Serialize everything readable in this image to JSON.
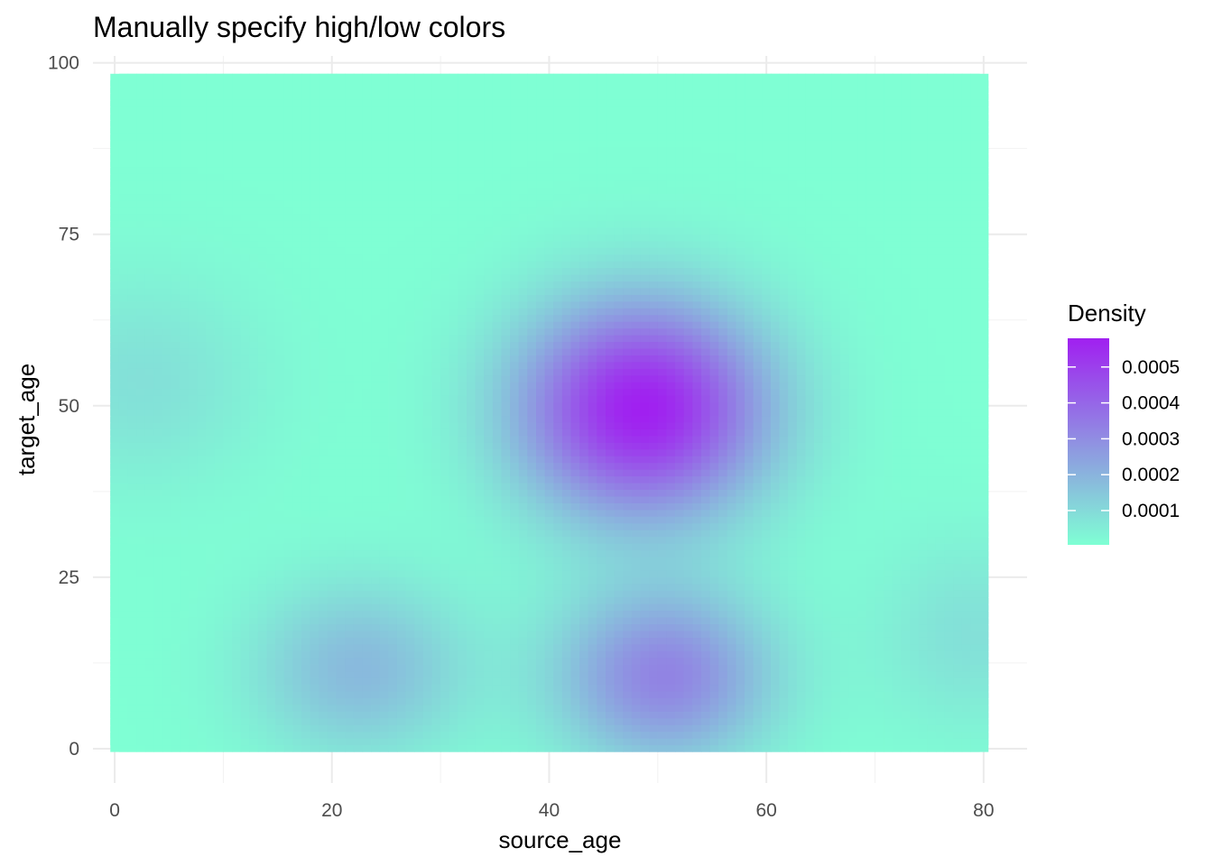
{
  "chart_data": {
    "type": "heatmap",
    "title": "Manually specify high/low colors",
    "xlabel": "source_age",
    "ylabel": "target_age",
    "xlim": [
      -2,
      84
    ],
    "ylim": [
      -5,
      101
    ],
    "x_ticks": [
      0,
      20,
      40,
      60,
      80
    ],
    "x_tick_labels": [
      "0",
      "20",
      "40",
      "60",
      "80"
    ],
    "y_ticks": [
      0,
      25,
      50,
      75,
      100
    ],
    "y_tick_labels": [
      "0",
      "25",
      "50",
      "75",
      "100"
    ],
    "fill_extent": {
      "x": [
        0,
        80
      ],
      "y": [
        0,
        98
      ]
    },
    "grid": true,
    "color_low": "#7fffd4",
    "color_high": "#a020f0",
    "density_peaks": [
      {
        "x": 49,
        "y": 50,
        "value": 0.00058
      },
      {
        "x": 51,
        "y": 11,
        "value": 0.00032
      },
      {
        "x": 23,
        "y": 12,
        "value": 0.00018
      },
      {
        "x": 3,
        "y": 54,
        "value": 8e-05
      },
      {
        "x": 79,
        "y": 17,
        "value": 8e-05
      }
    ],
    "density_max": 0.00058,
    "legend": {
      "title": "Density",
      "position": "right",
      "breaks": [
        0.0001,
        0.0002,
        0.0003,
        0.0004,
        0.0005
      ],
      "labels": [
        "0.0001",
        "0.0002",
        "0.0003",
        "0.0004",
        "0.0005"
      ]
    }
  }
}
